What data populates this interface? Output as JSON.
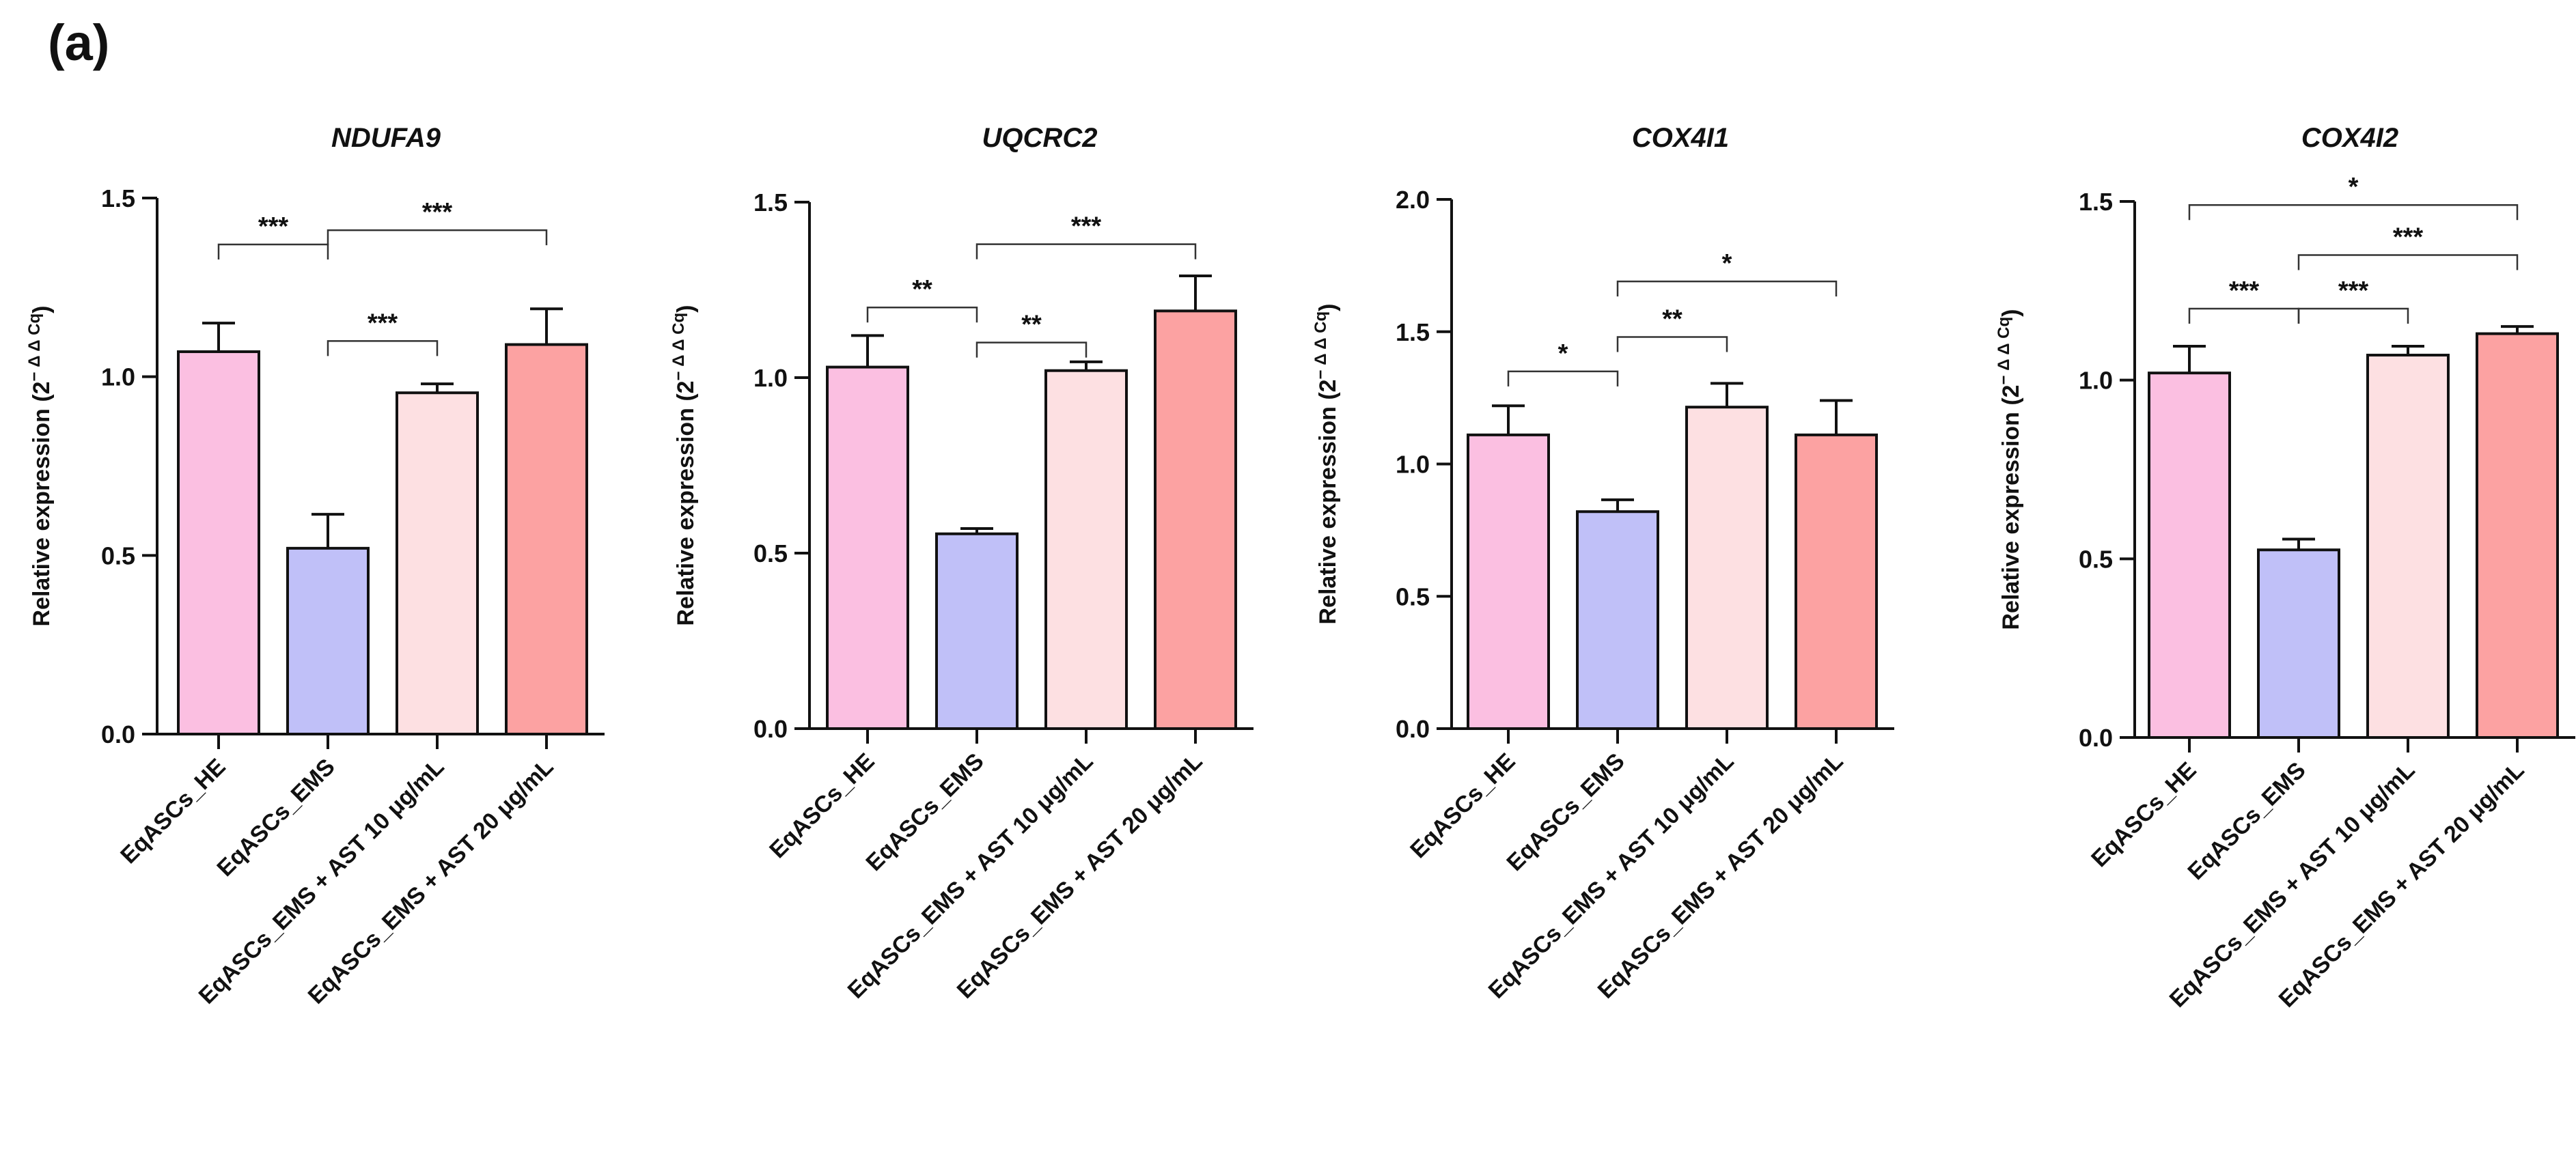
{
  "panel_label": "(a)",
  "colors": {
    "EqASCs_HE": "#fbbfe1",
    "EqASCs_EMS": "#c0c0f8",
    "EqASCs_EMS + AST 10 μg/mL": "#fde0e2",
    "EqASCs_EMS + AST 20 μg/mL": "#fca2a2"
  },
  "chart_data": [
    {
      "type": "bar",
      "title": "NDUFA9",
      "ylabel_main": "Relative expression (2",
      "ylabel_sup": "− Δ Δ Cq",
      "ylabel_end": ")",
      "categories": [
        "EqASCs_HE",
        "EqASCs_EMS",
        "EqASCs_EMS + AST 10 μg/mL",
        "EqASCs_EMS + AST 20 μg/mL"
      ],
      "values": [
        1.07,
        0.52,
        0.955,
        1.09
      ],
      "errors": [
        0.08,
        0.095,
        0.025,
        0.1
      ],
      "ylim": [
        0,
        1.5
      ],
      "yticks": [
        "0.0",
        "0.5",
        "1.0",
        "1.5"
      ],
      "significance": [
        {
          "from": 0,
          "to": 1,
          "label": "***",
          "y": 1.37
        },
        {
          "from": 1,
          "to": 2,
          "label": "***",
          "y": 1.1
        },
        {
          "from": 1,
          "to": 3,
          "label": "***",
          "y": 1.41
        }
      ]
    },
    {
      "type": "bar",
      "title": "UQCRC2",
      "ylabel_main": "Relative expression (2",
      "ylabel_sup": "− Δ Δ Cq",
      "ylabel_end": ")",
      "categories": [
        "EqASCs_HE",
        "EqASCs_EMS",
        "EqASCs_EMS + AST 10 μg/mL",
        "EqASCs_EMS + AST 20 μg/mL"
      ],
      "values": [
        1.03,
        0.555,
        1.02,
        1.19
      ],
      "errors": [
        0.09,
        0.015,
        0.025,
        0.1
      ],
      "ylim": [
        0,
        1.5
      ],
      "yticks": [
        "0.0",
        "0.5",
        "1.0",
        "1.5"
      ],
      "significance": [
        {
          "from": 0,
          "to": 1,
          "label": "**",
          "y": 1.2
        },
        {
          "from": 1,
          "to": 2,
          "label": "**",
          "y": 1.1
        },
        {
          "from": 1,
          "to": 3,
          "label": "***",
          "y": 1.38
        }
      ]
    },
    {
      "type": "bar",
      "title": "COX4I1",
      "ylabel_main": "Relative expression (2",
      "ylabel_sup": "− Δ Δ Cq",
      "ylabel_end": ")",
      "categories": [
        "EqASCs_HE",
        "EqASCs_EMS",
        "EqASCs_EMS + AST 10 μg/mL",
        "EqASCs_EMS + AST 20 μg/mL"
      ],
      "values": [
        1.11,
        0.82,
        1.215,
        1.11
      ],
      "errors": [
        0.11,
        0.045,
        0.09,
        0.13
      ],
      "ylim": [
        0,
        2.0
      ],
      "yticks": [
        "0.0",
        "0.5",
        "1.0",
        "1.5",
        "2.0"
      ],
      "significance": [
        {
          "from": 0,
          "to": 1,
          "label": "*",
          "y": 1.35
        },
        {
          "from": 1,
          "to": 2,
          "label": "**",
          "y": 1.48
        },
        {
          "from": 1,
          "to": 3,
          "label": "*",
          "y": 1.69
        }
      ]
    },
    {
      "type": "bar",
      "title": "COX4I2",
      "ylabel_main": "Relative expression (2",
      "ylabel_sup": "− Δ Δ Cq",
      "ylabel_end": ")",
      "categories": [
        "EqASCs_HE",
        "EqASCs_EMS",
        "EqASCs_EMS + AST 10 μg/mL",
        "EqASCs_EMS + AST 20 μg/mL"
      ],
      "values": [
        1.02,
        0.525,
        1.07,
        1.13
      ],
      "errors": [
        0.075,
        0.03,
        0.025,
        0.02
      ],
      "ylim": [
        0,
        1.5
      ],
      "yticks": [
        "0.0",
        "0.5",
        "1.0",
        "1.5"
      ],
      "significance": [
        {
          "from": 0,
          "to": 1,
          "label": "***",
          "y": 1.2
        },
        {
          "from": 1,
          "to": 2,
          "label": "***",
          "y": 1.2
        },
        {
          "from": 1,
          "to": 3,
          "label": "***",
          "y": 1.35
        },
        {
          "from": 0,
          "to": 3,
          "label": "*",
          "y": 1.49
        }
      ]
    }
  ]
}
